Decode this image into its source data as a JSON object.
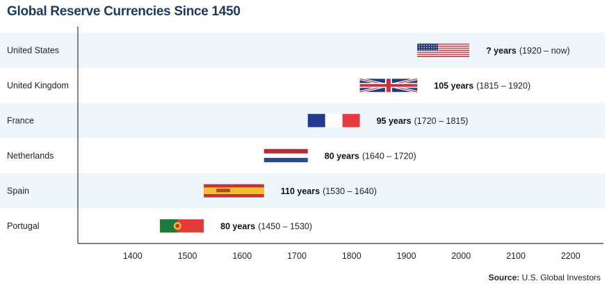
{
  "title": "Global Reserve Currencies Since 1450",
  "source_label": "Source:",
  "source_text": "U.S. Global Investors",
  "colors": {
    "band": "#eef6fb",
    "axis": "#333333",
    "title": "#1b3a5c"
  },
  "chart_data": {
    "type": "bar",
    "orientation": "horizontal-range",
    "title": "Global Reserve Currencies Since 1450",
    "xlabel": "",
    "ylabel": "",
    "xlim": [
      1300,
      2260
    ],
    "x_ticks": [
      1400,
      1500,
      1600,
      1700,
      1800,
      1900,
      2000,
      2100,
      2200
    ],
    "categories": [
      "United States",
      "United Kingdom",
      "France",
      "Netherlands",
      "Spain",
      "Portugal"
    ],
    "series": [
      {
        "country": "United States",
        "start": 1920,
        "end": 2015,
        "flag": "us-flag-icon",
        "duration_label": "? years",
        "span_label": "(1920 – now)"
      },
      {
        "country": "United Kingdom",
        "start": 1815,
        "end": 1920,
        "flag": "uk-flag-icon",
        "duration_label": "105 years",
        "span_label": "(1815 – 1920)"
      },
      {
        "country": "France",
        "start": 1720,
        "end": 1815,
        "flag": "france-flag-icon",
        "duration_label": "95 years",
        "span_label": "(1720 – 1815)"
      },
      {
        "country": "Netherlands",
        "start": 1640,
        "end": 1720,
        "flag": "netherlands-flag-icon",
        "duration_label": "80 years",
        "span_label": "(1640 – 1720)"
      },
      {
        "country": "Spain",
        "start": 1530,
        "end": 1640,
        "flag": "spain-flag-icon",
        "duration_label": "110 years",
        "span_label": "(1530 – 1640)"
      },
      {
        "country": "Portugal",
        "start": 1450,
        "end": 1530,
        "flag": "portugal-flag-icon",
        "duration_label": "80 years",
        "span_label": "(1450 – 1530)"
      }
    ]
  }
}
